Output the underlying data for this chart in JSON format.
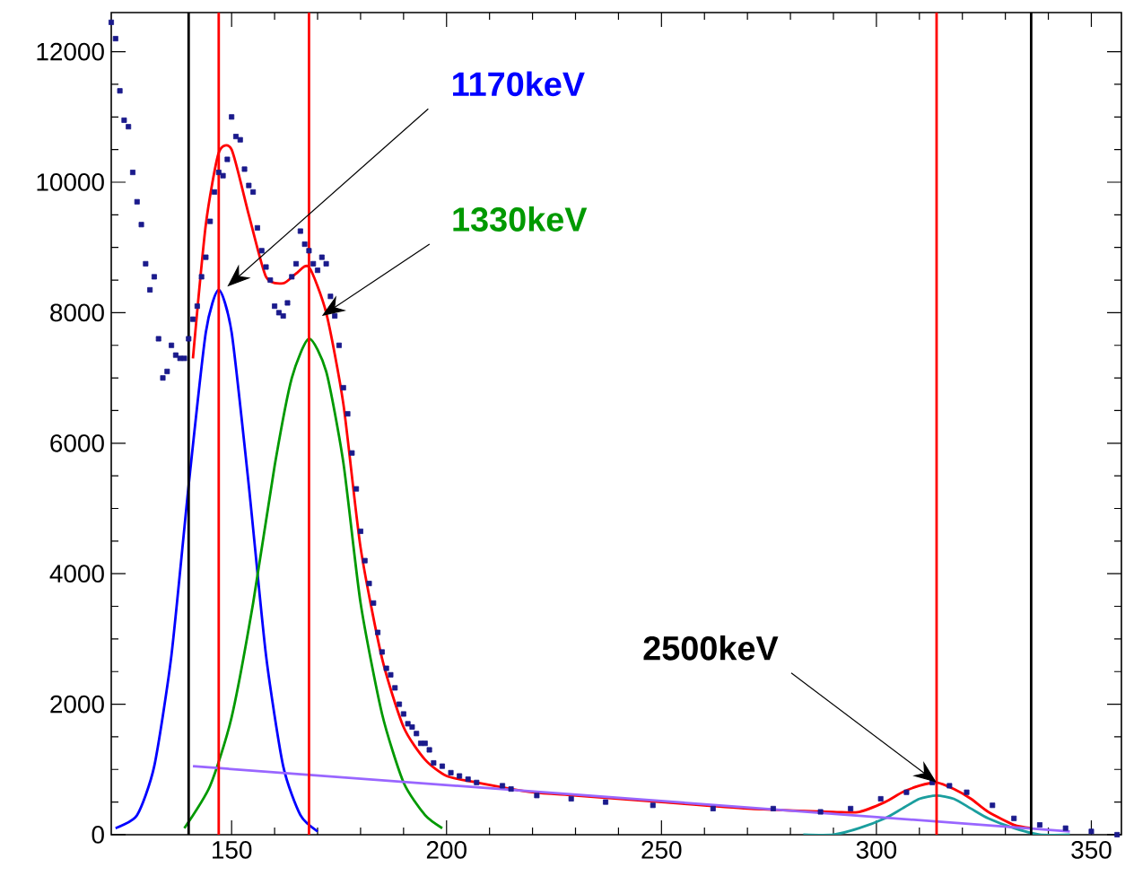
{
  "chart_data": {
    "type": "line",
    "xlim": [
      122,
      357
    ],
    "ylim": [
      0,
      12600
    ],
    "xticks": [
      150,
      200,
      250,
      300,
      350
    ],
    "yticks": [
      0,
      2000,
      4000,
      6000,
      8000,
      10000,
      12000
    ],
    "grid": false,
    "series": [
      {
        "type": "scatter",
        "marker": "square",
        "color": "#1a1a8c",
        "x": [
          122,
          123,
          124,
          125,
          126,
          127,
          128,
          129,
          130,
          131,
          132,
          133,
          134,
          135,
          136,
          137,
          138,
          139,
          140,
          141,
          142,
          143,
          144,
          145,
          146,
          147,
          148,
          149,
          150,
          151,
          152,
          153,
          154,
          155,
          156,
          157,
          158,
          159,
          160,
          161,
          162,
          163,
          164,
          165,
          166,
          167,
          168,
          169,
          170,
          171,
          172,
          173,
          174,
          175,
          176,
          177,
          178,
          179,
          180,
          181,
          182,
          183,
          184,
          185,
          186,
          187,
          188,
          189,
          190,
          191,
          192,
          193,
          194,
          195,
          196,
          197,
          199,
          201,
          203,
          205,
          207,
          213,
          215,
          221,
          229,
          237,
          248,
          262,
          276,
          287,
          294,
          301,
          307,
          313,
          317,
          321,
          327,
          332,
          338,
          344,
          350,
          356
        ],
        "values": [
          12450,
          12200,
          11400,
          10950,
          10850,
          10150,
          9700,
          9350,
          8750,
          8350,
          8550,
          7600,
          7000,
          7100,
          7500,
          7350,
          7300,
          7300,
          7600,
          7900,
          8100,
          8550,
          8850,
          9400,
          9850,
          10150,
          10100,
          10350,
          11000,
          10700,
          10650,
          10200,
          9950,
          9850,
          9300,
          8950,
          8700,
          8500,
          8100,
          8000,
          7950,
          8150,
          8550,
          8750,
          9250,
          9050,
          8950,
          8750,
          8650,
          8850,
          8750,
          8250,
          7950,
          7500,
          6850,
          6450,
          5850,
          5300,
          4650,
          4200,
          3850,
          3550,
          3100,
          2800,
          2550,
          2450,
          2250,
          2000,
          1850,
          1700,
          1650,
          1550,
          1400,
          1400,
          1300,
          1100,
          1050,
          950,
          900,
          850,
          800,
          750,
          700,
          600,
          550,
          500,
          450,
          400,
          400,
          350,
          400,
          550,
          650,
          800,
          750,
          650,
          450,
          250,
          150,
          100,
          50,
          0
        ]
      },
      {
        "color": "#ff0000",
        "x": [
          141,
          144,
          147,
          150,
          154,
          158,
          162,
          165,
          168,
          172,
          176,
          180,
          185,
          190,
          195,
          200,
          207,
          220,
          230,
          250,
          270,
          290,
          296,
          302,
          306,
          310,
          314,
          318,
          322,
          326,
          332,
          336
        ],
        "values": [
          7300,
          9350,
          10450,
          10500,
          9500,
          8550,
          8450,
          8600,
          8700,
          8000,
          6600,
          4400,
          2700,
          1650,
          1150,
          900,
          800,
          650,
          600,
          500,
          400,
          350,
          350,
          500,
          650,
          750,
          800,
          700,
          550,
          350,
          150,
          100
        ]
      },
      {
        "color": "#0000ff",
        "x": [
          123,
          128,
          132,
          136,
          140,
          144,
          147,
          150,
          154,
          158,
          162,
          166,
          170
        ],
        "values": [
          100,
          300,
          1050,
          2750,
          5350,
          7700,
          8350,
          7700,
          5350,
          2750,
          1050,
          300,
          50
        ]
      },
      {
        "color": "#009900",
        "x": [
          139,
          145,
          150,
          155,
          160,
          164,
          168,
          172,
          176,
          180,
          185,
          190,
          195,
          199
        ],
        "values": [
          100,
          750,
          1800,
          3550,
          5650,
          7000,
          7600,
          7100,
          5700,
          3550,
          1850,
          800,
          300,
          100
        ]
      },
      {
        "color": "#1a9e9e",
        "x": [
          283,
          290,
          296,
          302,
          306,
          310,
          314,
          318,
          322,
          326,
          332,
          338,
          345
        ],
        "values": [
          0,
          0,
          100,
          250,
          400,
          550,
          600,
          550,
          400,
          250,
          100,
          0,
          0
        ]
      },
      {
        "color": "#9966ff",
        "x": [
          141,
          345
        ],
        "values": [
          1050,
          50
        ]
      }
    ],
    "ref_lines": [
      {
        "axis": "x",
        "value": 140,
        "color": "#000000"
      },
      {
        "axis": "x",
        "value": 147,
        "color": "#ff0000"
      },
      {
        "axis": "x",
        "value": 168,
        "color": "#ff0000"
      },
      {
        "axis": "x",
        "value": 314,
        "color": "#ff0000"
      },
      {
        "axis": "x",
        "value": 336,
        "color": "#000000"
      }
    ],
    "annotations": [
      {
        "text": "1170keV",
        "x": 149,
        "y": 8400
      },
      {
        "text": "1330keV",
        "x": 171,
        "y": 7950
      },
      {
        "text": "2500keV",
        "x": 314,
        "y": 800
      }
    ]
  }
}
